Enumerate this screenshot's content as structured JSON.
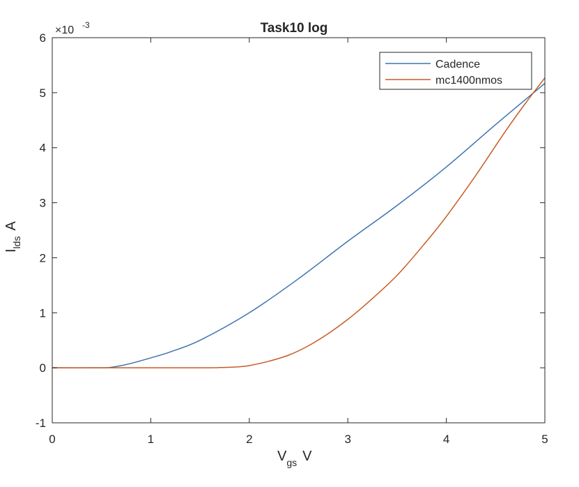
{
  "chart_data": {
    "type": "line",
    "title": "Task10 log",
    "xlabel": {
      "main": "V",
      "sub": "gs",
      "unit": "V"
    },
    "ylabel": {
      "main": "I",
      "sub": "lds",
      "unit": "A"
    },
    "y_exponent": {
      "base": "×10",
      "power": "-3"
    },
    "xlim": [
      0,
      5
    ],
    "ylim": [
      -1,
      6
    ],
    "xticks": [
      0,
      1,
      2,
      3,
      4,
      5
    ],
    "xtick_labels": [
      "0",
      "1",
      "2",
      "3",
      "4",
      "5"
    ],
    "yticks": [
      -1,
      0,
      1,
      2,
      3,
      4,
      5,
      6
    ],
    "ytick_labels": [
      "-1",
      "0",
      "1",
      "2",
      "3",
      "4",
      "5",
      "6"
    ],
    "grid": false,
    "legend_position": "top-right",
    "series": [
      {
        "name": "Cadence",
        "color": "#3d73b0",
        "x": [
          0,
          0.5,
          0.6,
          0.7,
          0.8,
          1.0,
          1.2,
          1.5,
          2.0,
          2.5,
          3.0,
          3.5,
          4.0,
          4.5,
          5.0
        ],
        "y": [
          0,
          0.0,
          0.01,
          0.04,
          0.08,
          0.18,
          0.29,
          0.5,
          1.0,
          1.62,
          2.3,
          2.95,
          3.65,
          4.42,
          5.17
        ]
      },
      {
        "name": "mc1400nmos",
        "color": "#c75b26",
        "x": [
          0,
          1.5,
          1.7,
          1.8,
          1.9,
          2.0,
          2.2,
          2.4,
          2.6,
          2.8,
          3.0,
          3.2,
          3.5,
          3.8,
          4.0,
          4.3,
          4.6,
          4.8,
          5.0
        ],
        "y": [
          0,
          0.0,
          0.005,
          0.01,
          0.02,
          0.04,
          0.12,
          0.23,
          0.4,
          0.62,
          0.88,
          1.18,
          1.68,
          2.3,
          2.75,
          3.5,
          4.3,
          4.8,
          5.27
        ]
      }
    ]
  }
}
